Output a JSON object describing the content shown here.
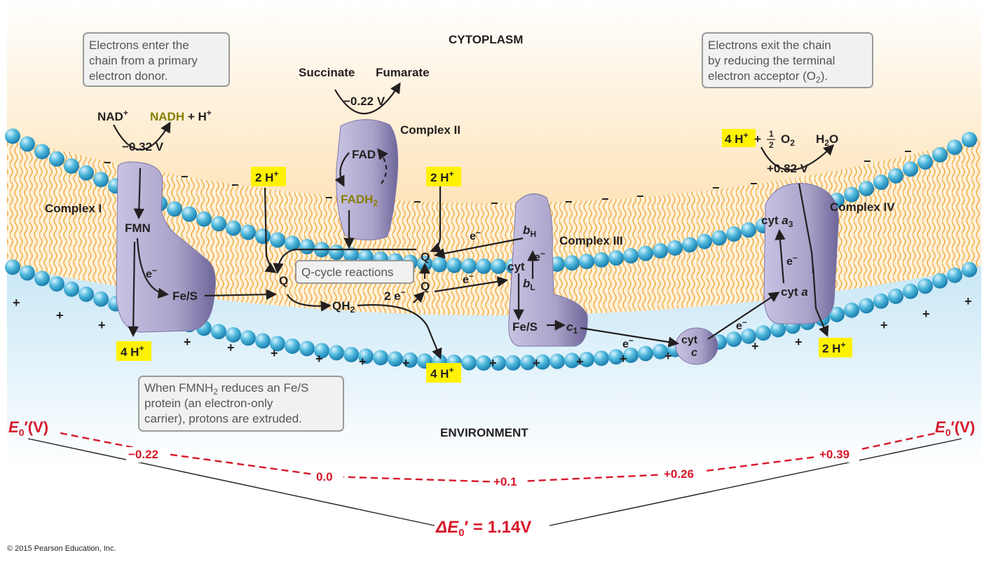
{
  "regions": {
    "top": "CYTOPLASM",
    "bottom": "ENVIRONMENT"
  },
  "callouts": {
    "enter": [
      "Electrons enter the",
      "chain from a primary",
      "electron donor."
    ],
    "exit": [
      "Electrons exit the chain",
      "by reducing the terminal",
      "electron acceptor (O",
      "2",
      ")."
    ],
    "fmnh2": [
      "When FMNH",
      "2",
      " reduces an Fe/S",
      "protein (an electron-only",
      "carrier), protons are extruded."
    ],
    "qcycle": "Q-cycle reactions"
  },
  "complexes": {
    "c1": "Complex I",
    "c2": "Complex II",
    "c3": "Complex III",
    "c4": "Complex IV"
  },
  "complex1": {
    "nad": "NAD",
    "plus": "+",
    "nadh": "NADH",
    "h": " + H",
    "voltage": "−0.32 V",
    "fmn": "FMN",
    "fes": "Fe/S",
    "e": "e",
    "minus": "−"
  },
  "complex2": {
    "succinate": "Succinate",
    "fumarate": "Fumarate",
    "voltage": "−0.22 V",
    "fad": "FAD",
    "fadh": "FADH",
    "sub2": "2"
  },
  "complex3": {
    "bh": "b",
    "h_sub": "H",
    "cyt": "cyt",
    "bl": "b",
    "l_sub": "L",
    "fes": "Fe/S",
    "c1": "c",
    "c1_sub": "1",
    "e": "e",
    "minus": "−"
  },
  "complex4": {
    "cyt_a3": "cyt ",
    "a": "a",
    "sub3": "3",
    "cyt_a": "cyt ",
    "voltage": "+0.82 V",
    "four_h": "4 H",
    "plus": "+",
    "half_o2": "O",
    "sub2": "2",
    "h2o_h": "H",
    "h2o_o": "O",
    "frac_num": "1",
    "frac_den": "2",
    "plus_sign": " + "
  },
  "cytc": {
    "cyt": "cyt",
    "c": "c"
  },
  "quinone": {
    "q": "Q",
    "qh": "QH",
    "sub2": "2",
    "two_e": "2 e",
    "minus": "−"
  },
  "protons": {
    "h2": "2 H",
    "h4": "4 H",
    "plus": "+"
  },
  "electron": {
    "e": "e",
    "minus": "−"
  },
  "potential": {
    "axis_label": "E",
    "axis_sub": "0",
    "axis_unit": "′(V)",
    "values": [
      "−0.22",
      "0.0",
      "+0.1",
      "+0.26",
      "+0.39"
    ],
    "delta_prefix": "Δ",
    "delta_e": "E",
    "delta_sub": "0",
    "delta_rest": "′ = 1.14V"
  },
  "copyright": "© 2015 Pearson Education, Inc.",
  "colors": {
    "red": "#d7182a",
    "yellow": "#fff200",
    "protein": "#a9a2c9",
    "bead": "#4fb8dc",
    "tail": "#f2b04a"
  }
}
